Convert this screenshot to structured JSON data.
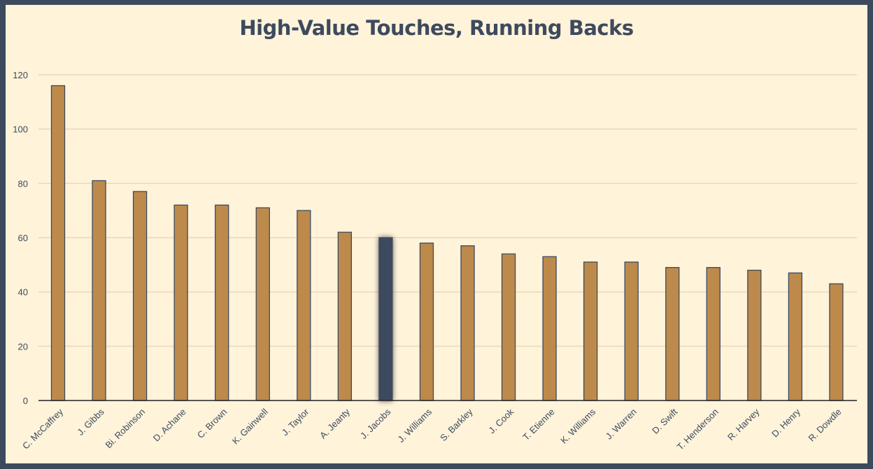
{
  "chart_data": {
    "type": "bar",
    "title": "High-Value Touches, Running Backs",
    "xlabel": "",
    "ylabel": "",
    "ylim": [
      0,
      120
    ],
    "yticks": [
      0,
      20,
      40,
      60,
      80,
      100,
      120
    ],
    "grid": true,
    "categories": [
      "C. McCaffrey",
      "J. Gibbs",
      "Bi. Robinson",
      "D. Achane",
      "C. Brown",
      "K. Gainwell",
      "J. Taylor",
      "A. Jeanty",
      "J. Jacobs",
      "J. Williams",
      "S. Barkley",
      "J. Cook",
      "T. Etienne",
      "K. Williams",
      "J. Warren",
      "D. Swift",
      "T. Henderson",
      "R. Harvey",
      "D. Henry",
      "R. Dowdle"
    ],
    "values": [
      116,
      81,
      77,
      72,
      72,
      71,
      70,
      62,
      60,
      58,
      57,
      54,
      53,
      51,
      51,
      49,
      49,
      48,
      47,
      43
    ],
    "highlight": "J. Jacobs",
    "colors": {
      "bar": "#bd8a4c",
      "highlight": "#3d4a5e",
      "outline": "#3d4a5e",
      "grid": "#ead7bb",
      "background": "#fff3da"
    }
  }
}
